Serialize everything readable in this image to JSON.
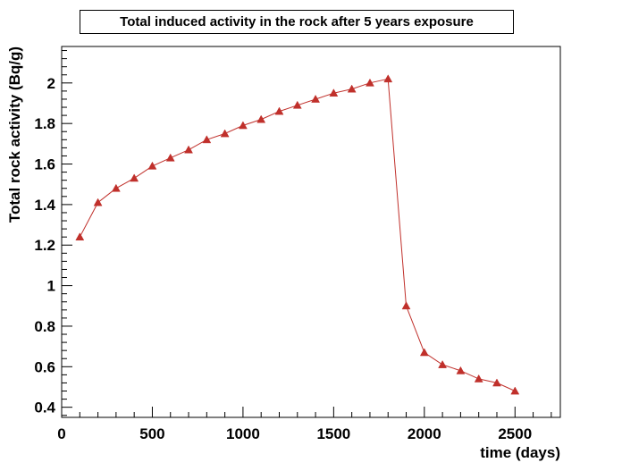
{
  "chart_data": {
    "type": "line",
    "title": "Total induced activity in the rock after 5 years exposure",
    "xlabel": "time (days)",
    "ylabel": "Total rock activity (Bq/g)",
    "xlim": [
      0,
      2750
    ],
    "ylim": [
      0.35,
      2.18
    ],
    "xticks": [
      0,
      500,
      1000,
      1500,
      2000,
      2500
    ],
    "yticks": [
      0.4,
      0.6,
      0.8,
      1,
      1.2,
      1.4,
      1.6,
      1.8,
      2
    ],
    "grid": false,
    "marker": "triangle",
    "series": [
      {
        "color": "#c0302b",
        "x": [
          100,
          200,
          300,
          400,
          500,
          600,
          700,
          800,
          900,
          1000,
          1100,
          1200,
          1300,
          1400,
          1500,
          1600,
          1700,
          1800,
          1900,
          2000,
          2100,
          2200,
          2300,
          2400,
          2500
        ],
        "y": [
          1.24,
          1.41,
          1.48,
          1.53,
          1.59,
          1.63,
          1.67,
          1.72,
          1.75,
          1.79,
          1.82,
          1.86,
          1.89,
          1.92,
          1.95,
          1.97,
          2.0,
          2.02,
          0.9,
          0.67,
          0.61,
          0.58,
          0.54,
          0.52,
          0.48
        ]
      }
    ]
  }
}
